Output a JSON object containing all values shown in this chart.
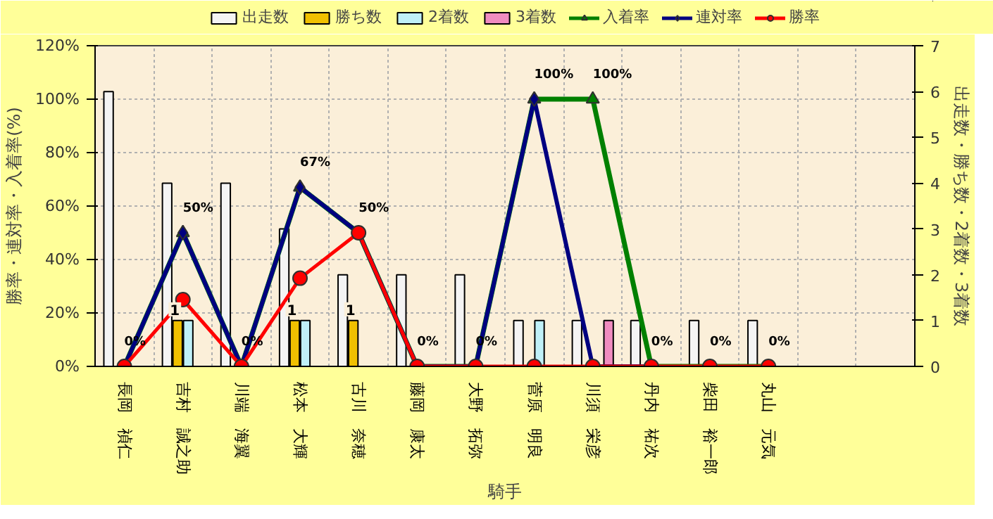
{
  "chart_data": {
    "type": "bar",
    "xlabel": "騎手",
    "ylabel": "勝率・連対率・入着率(%)",
    "y2label": "出走数・勝ち数・2着数・3着数",
    "categories": [
      "長岡　禎仁",
      "吉村　誠之助",
      "川端　海翼",
      "松本　大輝",
      "古川　奈穂",
      "藤岡　康太",
      "大野　拓弥",
      "菅原　明良",
      "川須　栄彦",
      "丹内　祐次",
      "柴田　裕一郎",
      "丸山　元気",
      null,
      null
    ],
    "series": [
      {
        "name": "出走数",
        "type": "bar",
        "axis": "y2",
        "color": "#f4f4f4",
        "values": [
          6,
          4,
          4,
          3,
          2,
          2,
          2,
          1,
          1,
          1,
          1,
          1,
          null,
          null
        ]
      },
      {
        "name": "勝ち数",
        "type": "bar",
        "axis": "y2",
        "color": "#f0c000",
        "values": [
          0,
          1,
          0,
          1,
          1,
          0,
          0,
          0,
          0,
          0,
          0,
          0,
          null,
          null
        ],
        "value_labels": [
          null,
          "1",
          null,
          "1",
          "1",
          null,
          null,
          null,
          null,
          null,
          null,
          null,
          null,
          null
        ]
      },
      {
        "name": "2着数",
        "type": "bar",
        "axis": "y2",
        "color": "#bff0f8",
        "values": [
          0,
          1,
          0,
          1,
          0,
          0,
          0,
          1,
          0,
          0,
          0,
          0,
          null,
          null
        ]
      },
      {
        "name": "3着数",
        "type": "bar",
        "axis": "y2",
        "color": "#f08cc0",
        "values": [
          0,
          0,
          0,
          0,
          0,
          0,
          0,
          0,
          1,
          0,
          0,
          0,
          null,
          null
        ]
      },
      {
        "name": "入着率",
        "type": "line",
        "color": "#008000",
        "marker": "triangle",
        "values": [
          0,
          50,
          0,
          67,
          50,
          0,
          0,
          100,
          100,
          0,
          0,
          0,
          null,
          null
        ],
        "value_labels": [
          "0%",
          "50%",
          "0%",
          "67%",
          "50%",
          "0%",
          "0%",
          "100%",
          "100%",
          "0%",
          "0%",
          "0%",
          null,
          null
        ]
      },
      {
        "name": "連対率",
        "type": "line",
        "color": "#000080",
        "marker": "diamond",
        "values": [
          0,
          50,
          0,
          67,
          50,
          0,
          0,
          100,
          0,
          0,
          null,
          null,
          null,
          null
        ]
      },
      {
        "name": "勝率",
        "type": "line",
        "color": "#ff0000",
        "marker": "circle",
        "values": [
          0,
          25,
          0,
          33,
          50,
          0,
          0,
          0,
          0,
          0,
          0,
          0,
          null,
          null
        ]
      }
    ],
    "ylim": [
      0,
      120
    ],
    "yticks": [
      {
        "value": 0,
        "label": "0%"
      },
      {
        "value": 20,
        "label": "20%"
      },
      {
        "value": 40,
        "label": "40%"
      },
      {
        "value": 60,
        "label": "60%"
      },
      {
        "value": 80,
        "label": "80%"
      },
      {
        "value": 100,
        "label": "100%"
      },
      {
        "value": 120,
        "label": "120%"
      }
    ],
    "y2lim": [
      0,
      7
    ],
    "y2ticks": [
      0,
      1,
      2,
      3,
      4,
      5,
      6,
      7
    ],
    "grid": true,
    "legend": "top"
  }
}
